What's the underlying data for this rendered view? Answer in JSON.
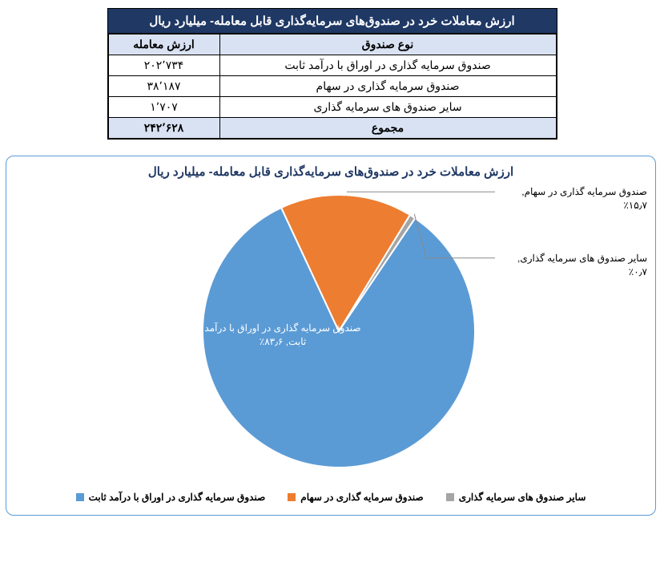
{
  "table": {
    "title": "ارزش معاملات خرد در صندوق‌های سرمایه‌گذاری قابل معامله- میلیارد ریال",
    "columns": [
      "نوع صندوق",
      "ارزش معامله"
    ],
    "rows": [
      [
        "صندوق سرمایه گذاری در اوراق با درآمد ثابت",
        "۲۰۲٬۷۳۴"
      ],
      [
        "صندوق سرمایه گذاری در سهام",
        "۳۸٬۱۸۷"
      ],
      [
        "سایر صندوق های سرمایه گذاری",
        "۱٬۷۰۷"
      ]
    ],
    "total": [
      "مجموع",
      "۲۴۲٬۶۲۸"
    ]
  },
  "chart": {
    "type": "pie",
    "title": "ارزش معاملات خرد در صندوق‌های سرمایه‌گذاری قابل معامله- میلیارد ریال",
    "background_color": "#ffffff",
    "border_color": "#5b9bd5",
    "title_color": "#1f3864",
    "title_fontsize": 15,
    "slices": [
      {
        "label": "صندوق سرمایه گذاری در اوراق با درآمد ثابت",
        "display": "صندوق سرمایه گذاری در اوراق با درآمد\nثابت, ۸۳٫۶٪",
        "value": 83.6,
        "color": "#5b9bd5"
      },
      {
        "label": "صندوق سرمایه گذاری در سهام",
        "display": "صندوق سرمایه گذاری در سهام, ۱۵٫۷٪",
        "value": 15.7,
        "color": "#ed7d31"
      },
      {
        "label": "سایر صندوق های سرمایه گذاری",
        "display": "سایر صندوق های سرمایه گذاری, ۰٫۷٪",
        "value": 0.7,
        "color": "#a5a5a5"
      }
    ],
    "legend_fontsize": 12,
    "slice_label_fontsize": 12,
    "pie_radius": 170
  }
}
